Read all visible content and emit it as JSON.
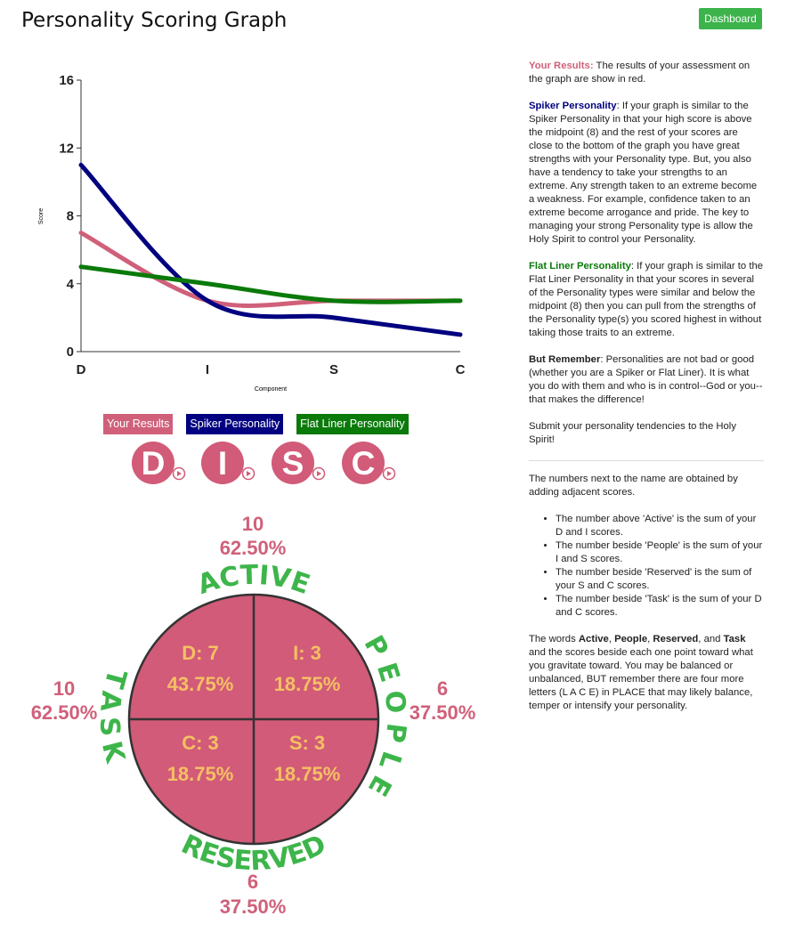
{
  "header": {
    "title": "Personality Scoring Graph",
    "button": "Dashboard"
  },
  "chart_data": {
    "type": "line",
    "ylabel": "Score",
    "xlabel": "Component",
    "categories": [
      "D",
      "I",
      "S",
      "C"
    ],
    "series": [
      {
        "name": "Your Results",
        "color": "#d0607a",
        "values": [
          7,
          3,
          3,
          3
        ]
      },
      {
        "name": "Spiker Personality",
        "color": "#000080",
        "values": [
          11,
          3,
          2,
          1
        ]
      },
      {
        "name": "Flat Liner Personality",
        "color": "#0a7a0a",
        "values": [
          5,
          4,
          3,
          3
        ]
      }
    ],
    "ylim": [
      0,
      16
    ],
    "yticks": [
      0,
      4,
      8,
      12,
      16
    ],
    "grid": false,
    "smooth": true
  },
  "disc": [
    "D",
    "I",
    "S",
    "C"
  ],
  "quadrants": [
    {
      "label": "D: 7",
      "percent": "43.75%"
    },
    {
      "label": "I: 3",
      "percent": "18.75%"
    },
    {
      "label": "C: 3",
      "percent": "18.75%"
    },
    {
      "label": "S: 3",
      "percent": "18.75%"
    }
  ],
  "sides": {
    "active": {
      "word": "ACTIVE",
      "score": 10,
      "percent": "62.50%"
    },
    "people": {
      "word": "PEOPLE",
      "score": 6,
      "percent": "37.50%"
    },
    "reserved": {
      "word": "RESERVED",
      "score": 6,
      "percent": "37.50%"
    },
    "task": {
      "word": "TASK",
      "score": 10,
      "percent": "62.50%"
    }
  },
  "sidebar": {
    "p0": [
      "Your Results:",
      " The results of your assessment on the graph are show in red."
    ],
    "p1": [
      "Spiker Personality",
      ": If your graph is similar to the Spiker Personality in that your high score is above the midpoint (8) and the rest of your scores are close to the bottom of the graph you have great strengths with your Personality type. But, you also have a tendency to take your strengths to an extreme. Any strength taken to an extreme become a weakness. For example, confidence taken to an extreme become arrogance and pride. The key to managing your strong Personality type is allow the Holy Spirit to control your Personality."
    ],
    "p2": [
      "Flat Liner Personality",
      ": If your graph is similar to the Flat Liner Personality in that your scores in several of the Personality types were similar and below the midpoint (8) then you can pull from the strengths of the Personality type(s) you scored highest in without taking those traits to an extreme."
    ],
    "p3": [
      "But Remember",
      ": Personalities are not bad or good (whether you are a Spiker or Flat Liner). It is what you do with them and who is in control--God or you--that makes the difference!"
    ],
    "p4": "Submit your personality tendencies to the Holy Spirit!",
    "p5": "The numbers next to the name are obtained by adding adjacent scores.",
    "list": [
      "The number above 'Active' is the sum of your D and I scores.",
      "The number beside 'People' is the sum of your I and S scores.",
      "The number beside 'Reserved' is the sum of your S and C scores.",
      "The number beside 'Task' is the sum of your D and C scores."
    ],
    "p6": [
      "The words ",
      "Active",
      ", ",
      "People",
      ", ",
      "Reserved",
      ", and ",
      "Task",
      " and the scores beside each one point toward what you gravitate toward. You may be balanced or unbalanced, BUT remember there are four more letters (L A C E) in PLACE that may likely balance, temper or intensify your personality."
    ]
  }
}
